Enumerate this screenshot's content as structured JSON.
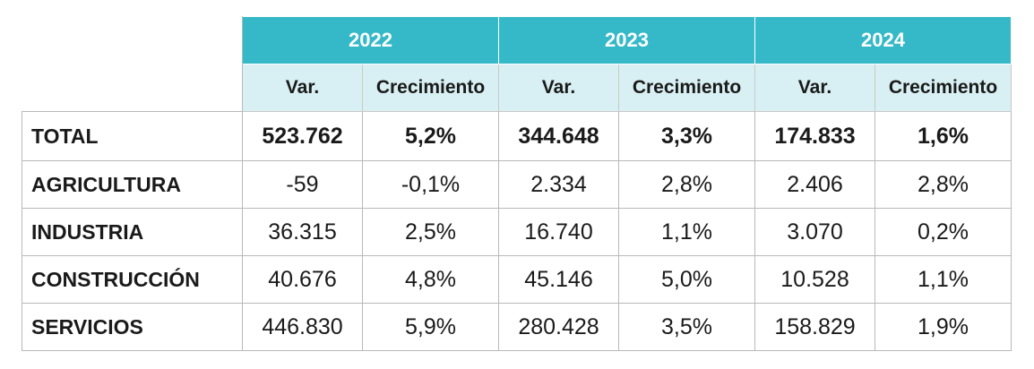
{
  "years": [
    "2022",
    "2023",
    "2024"
  ],
  "subheaders": [
    "Var.",
    "Crecimiento",
    "Var.",
    "Crecimiento",
    "Var.",
    "Crecimiento"
  ],
  "rows": [
    {
      "label": "TOTAL",
      "values": [
        "523.762",
        "5,2%",
        "344.648",
        "3,3%",
        "174.833",
        "1,6%"
      ]
    },
    {
      "label": "AGRICULTURA",
      "values": [
        "-59",
        "-0,1%",
        "2.334",
        "2,8%",
        "2.406",
        "2,8%"
      ]
    },
    {
      "label": "INDUSTRIA",
      "values": [
        "36.315",
        "2,5%",
        "16.740",
        "1,1%",
        "3.070",
        "0,2%"
      ]
    },
    {
      "label": "CONSTRUCCIÓN",
      "values": [
        "40.676",
        "4,8%",
        "45.146",
        "5,0%",
        "10.528",
        "1,1%"
      ]
    },
    {
      "label": "SERVICIOS",
      "values": [
        "446.830",
        "5,9%",
        "280.428",
        "3,5%",
        "158.829",
        "1,9%"
      ]
    }
  ],
  "colors": {
    "header_bg": "#35b9c8",
    "subheader_bg": "#d8f0f3",
    "border": "#b9b9b9"
  }
}
